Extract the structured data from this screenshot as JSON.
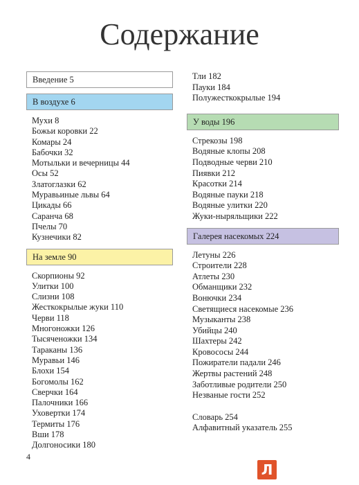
{
  "title": "Содержание",
  "columns": [
    [
      {
        "heading": "Введение 5",
        "color": "#ffffff"
      },
      {
        "heading": "В воздухе 6",
        "color": "#a3d6f0",
        "items": [
          "Мухи 8",
          "Божьи коровки 22",
          "Комары 24",
          "Бабочки 32",
          "Мотыльки и вечерницы 44",
          "Осы 52",
          "Златоглазки 62",
          "Муравьиные львы 64",
          "Цикады 66",
          "Саранча 68",
          "Пчелы 70",
          "Кузнечики 82"
        ]
      },
      {
        "heading": "На земле 90",
        "color": "#fcf2a6",
        "items": [
          "Скорпионы 92",
          "Улитки 100",
          "Слизни 108",
          "Жесткокрылые жуки 110",
          "Черви 118",
          "Многоножки 126",
          "Тысяченожки 134",
          "Тараканы 136",
          "Муравьи 146",
          "Блохи 154",
          "Богомолы 162",
          "Сверчки 164",
          "Палочники 166",
          "Уховертки 174",
          "Термиты 176",
          "Вши 178",
          "Долгоносики 180"
        ]
      }
    ],
    [
      {
        "items": [
          "Тли 182",
          "Пауки 184",
          "Полужесткокрылые 194"
        ]
      },
      {
        "heading": "У воды 196",
        "color": "#b6dcb3",
        "items": [
          "Стрекозы 198",
          "Водяные клопы 208",
          "Подводные черви 210",
          "Пиявки 212",
          "Красотки 214",
          "Водяные пауки 218",
          "Водяные улитки 220",
          "Жуки-ныряльщики 222"
        ]
      },
      {
        "heading": "Галерея насекомых 224",
        "color": "#c6c1e2",
        "items": [
          "Летуны 226",
          "Строители 228",
          "Атлеты 230",
          "Обманщики 232",
          "Вонючки 234",
          "Светящиеся насекомые 236",
          "Музыканты 238",
          "Убийцы 240",
          "Шахтеры 242",
          "Кровососы 244",
          "Пожиратели падали 246",
          "Жертвы растений 248",
          "Заботливые родители 250",
          "Незваные гости 252"
        ]
      },
      {
        "items": [
          "Словарь 254",
          "Алфавитный указатель 255"
        ]
      }
    ]
  ],
  "page_number": "4",
  "logo": "Л"
}
